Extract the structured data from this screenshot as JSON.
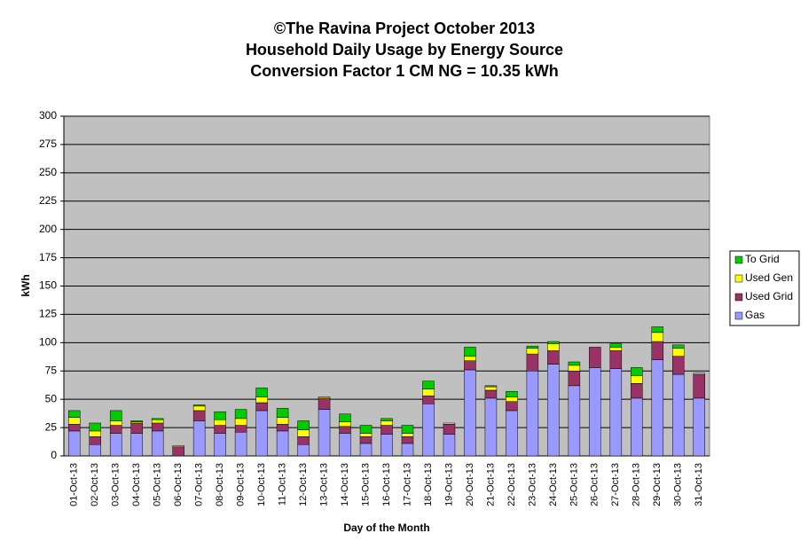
{
  "chart_data": {
    "type": "stacked-bar",
    "title": [
      "©The Ravina Project October 2013",
      "Household Daily Usage by Energy Source",
      "Conversion Factor 1 CM NG = 10.35 kWh"
    ],
    "y_label": "kWh",
    "x_label": "Day of the Month",
    "categories": [
      "01-Oct-13",
      "02-Oct-13",
      "03-Oct-13",
      "04-Oct-13",
      "05-Oct-13",
      "06-Oct-13",
      "07-Oct-13",
      "08-Oct-13",
      "09-Oct-13",
      "10-Oct-13",
      "11-Oct-13",
      "12-Oct-13",
      "13-Oct-13",
      "14-Oct-13",
      "15-Oct-13",
      "16-Oct-13",
      "17-Oct-13",
      "18-Oct-13",
      "19-Oct-13",
      "20-Oct-13",
      "21-Oct-13",
      "22-Oct-13",
      "23-Oct-13",
      "24-Oct-13",
      "25-Oct-13",
      "26-Oct-13",
      "27-Oct-13",
      "28-Oct-13",
      "29-Oct-13",
      "30-Oct-13",
      "31-Oct-13"
    ],
    "series": [
      {
        "name": "Gas",
        "color": "#9999ff",
        "values": [
          22,
          10,
          20,
          20,
          22,
          0,
          31,
          20,
          21,
          40,
          22,
          10,
          41,
          20,
          11,
          19,
          11,
          46,
          19,
          76,
          51,
          40,
          75,
          81,
          62,
          78,
          77,
          51,
          85,
          72,
          51
        ]
      },
      {
        "name": "Used Grid",
        "color": "#993366",
        "values": [
          6,
          7,
          7,
          9,
          7,
          8,
          9,
          7,
          6,
          7,
          6,
          7,
          10,
          6,
          6,
          8,
          6,
          7,
          9,
          8,
          7,
          8,
          15,
          12,
          13,
          18,
          16,
          13,
          16,
          16,
          21
        ]
      },
      {
        "name": "Used Gen",
        "color": "#ffff00",
        "values": [
          6,
          5,
          4,
          1,
          3,
          1,
          4,
          5,
          6,
          5,
          6,
          6,
          1,
          4,
          3,
          4,
          3,
          6,
          1,
          4,
          3,
          4,
          5,
          6,
          5,
          0,
          3,
          7,
          8,
          7,
          1
        ]
      },
      {
        "name": "To Grid",
        "color": "#00cc00",
        "values": [
          6,
          7,
          9,
          1,
          1,
          0,
          1,
          7,
          8,
          8,
          8,
          8,
          0,
          7,
          7,
          2,
          7,
          7,
          0,
          8,
          1,
          5,
          2,
          2,
          3,
          0,
          3,
          7,
          5,
          3,
          0
        ]
      }
    ],
    "ylim": [
      0,
      300
    ],
    "yticks": [
      0,
      25,
      50,
      75,
      100,
      125,
      150,
      175,
      200,
      225,
      250,
      275,
      300
    ],
    "grid": true
  }
}
